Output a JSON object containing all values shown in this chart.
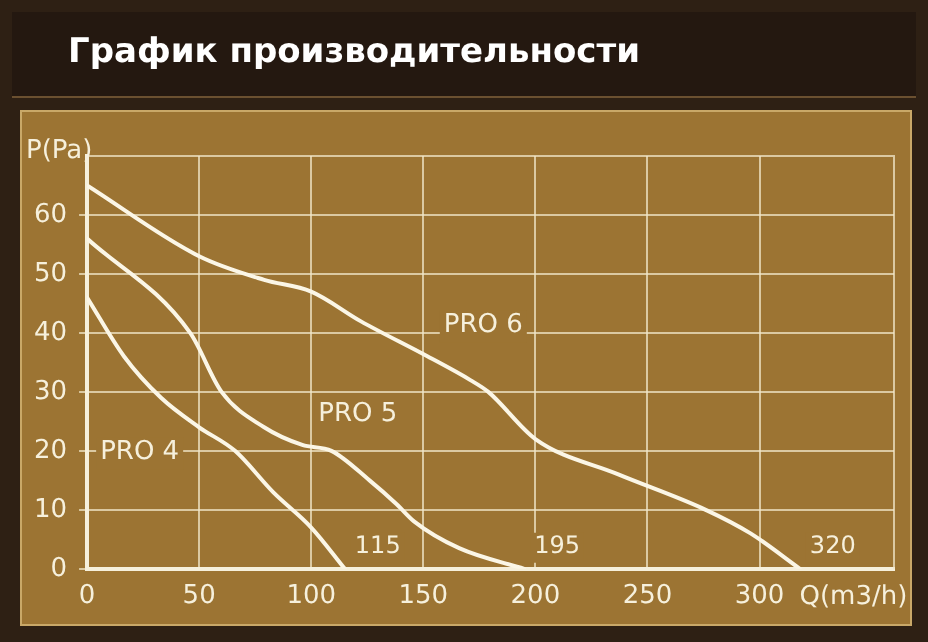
{
  "chart_data": {
    "type": "line",
    "title": "График производительности",
    "xlabel": "Q(m3/h)",
    "ylabel": "P(Pa)",
    "xlim": [
      0,
      360
    ],
    "xticks": [
      0,
      50,
      100,
      150,
      200,
      250,
      300
    ],
    "ylim": [
      0,
      70
    ],
    "yticks": [
      0,
      10,
      20,
      30,
      40,
      50,
      60
    ],
    "grid": true,
    "legend": false,
    "marker": "none",
    "line_style": "solid",
    "series": [
      {
        "name": "PRO 4",
        "color": "#fbf6e6",
        "x": [
          0,
          16.5,
          33,
          50,
          66,
          83,
          100,
          115
        ],
        "values": [
          46,
          36,
          29,
          24,
          20,
          13,
          7,
          0
        ]
      },
      {
        "name": "PRO 5",
        "color": "#fbf6e6",
        "x": [
          0,
          46,
          60,
          79,
          96,
          109,
          126,
          138,
          146,
          166,
          195
        ],
        "values": [
          56,
          40,
          30,
          24,
          21,
          20,
          15,
          11,
          8,
          3.5,
          0
        ]
      },
      {
        "name": "PRO 6",
        "color": "#fbf6e6",
        "x": [
          0,
          50,
          79,
          100,
          122,
          152,
          171,
          179,
          200,
          237,
          276,
          296,
          318
        ],
        "values": [
          65,
          53,
          49,
          47,
          42,
          36,
          32,
          30,
          22,
          16,
          10,
          6,
          0
        ]
      }
    ],
    "annotations": [
      {
        "text": "115",
        "x": 115,
        "y": 0
      },
      {
        "text": "195",
        "x": 195,
        "y": 0
      },
      {
        "text": "320",
        "x": 318,
        "y": 0
      }
    ]
  }
}
